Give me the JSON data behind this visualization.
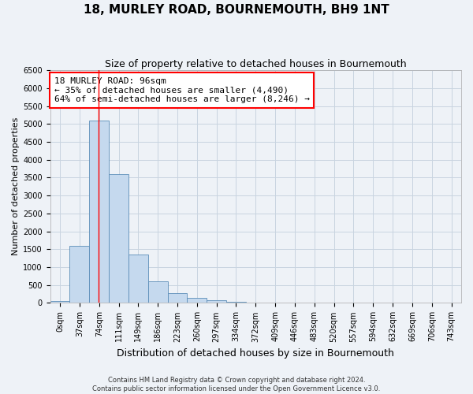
{
  "title": "18, MURLEY ROAD, BOURNEMOUTH, BH9 1NT",
  "subtitle": "Size of property relative to detached houses in Bournemouth",
  "xlabel": "Distribution of detached houses by size in Bournemouth",
  "ylabel": "Number of detached properties",
  "footer_line1": "Contains HM Land Registry data © Crown copyright and database right 2024.",
  "footer_line2": "Contains public sector information licensed under the Open Government Licence v3.0.",
  "bar_labels": [
    "0sqm",
    "37sqm",
    "74sqm",
    "111sqm",
    "149sqm",
    "186sqm",
    "223sqm",
    "260sqm",
    "297sqm",
    "334sqm",
    "372sqm",
    "409sqm",
    "446sqm",
    "483sqm",
    "520sqm",
    "557sqm",
    "594sqm",
    "632sqm",
    "669sqm",
    "706sqm",
    "743sqm"
  ],
  "bar_values": [
    50,
    1600,
    5100,
    3600,
    1350,
    600,
    280,
    140,
    80,
    40,
    20,
    10,
    5,
    0,
    0,
    0,
    0,
    0,
    0,
    0,
    0
  ],
  "bar_color": "#c5d9ee",
  "bar_edgecolor": "#5b8db8",
  "grid_color": "#c8d4e0",
  "background_color": "#eef2f7",
  "ylim": [
    0,
    6500
  ],
  "yticks": [
    0,
    500,
    1000,
    1500,
    2000,
    2500,
    3000,
    3500,
    4000,
    4500,
    5000,
    5500,
    6000,
    6500
  ],
  "red_line_x": 1.97,
  "annotation_text": "18 MURLEY ROAD: 96sqm\n← 35% of detached houses are smaller (4,490)\n64% of semi-detached houses are larger (8,246) →",
  "annotation_box_color": "white",
  "annotation_box_edgecolor": "red",
  "title_fontsize": 11,
  "subtitle_fontsize": 9,
  "xlabel_fontsize": 9,
  "ylabel_fontsize": 8,
  "tick_fontsize": 7,
  "annotation_fontsize": 8,
  "footer_fontsize": 6
}
